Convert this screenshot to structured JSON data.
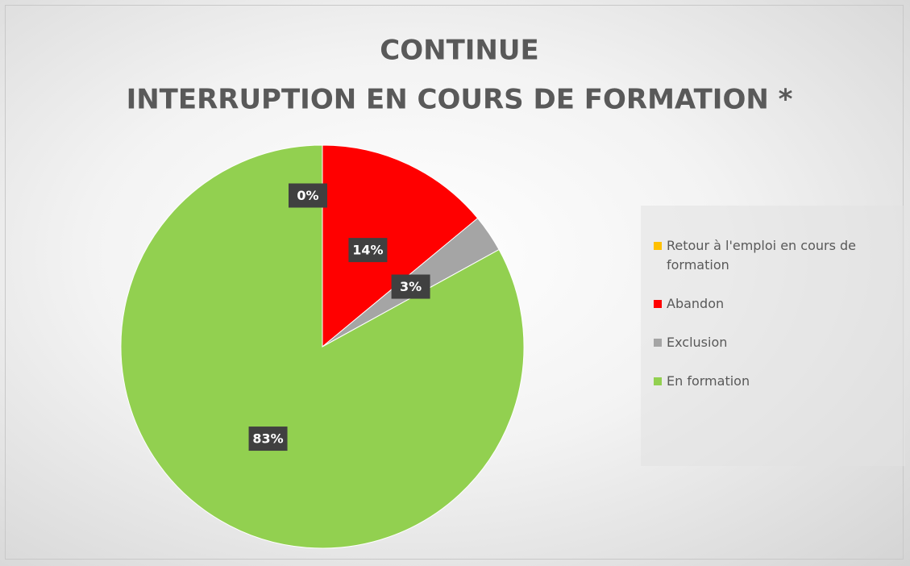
{
  "chart_data": {
    "type": "pie",
    "title": [
      "CONTINUE",
      "INTERRUPTION EN COURS DE FORMATION *"
    ],
    "categories": [
      "Retour à l'emploi en cours de formation",
      "Abandon",
      "Exclusion",
      "En formation"
    ],
    "values": [
      0,
      14,
      3,
      83
    ],
    "value_labels": [
      "0%",
      "14%",
      "3%",
      "83%"
    ],
    "colors": [
      "#ffc000",
      "#ff0000",
      "#a5a5a5",
      "#92d050"
    ],
    "legend": "right"
  }
}
